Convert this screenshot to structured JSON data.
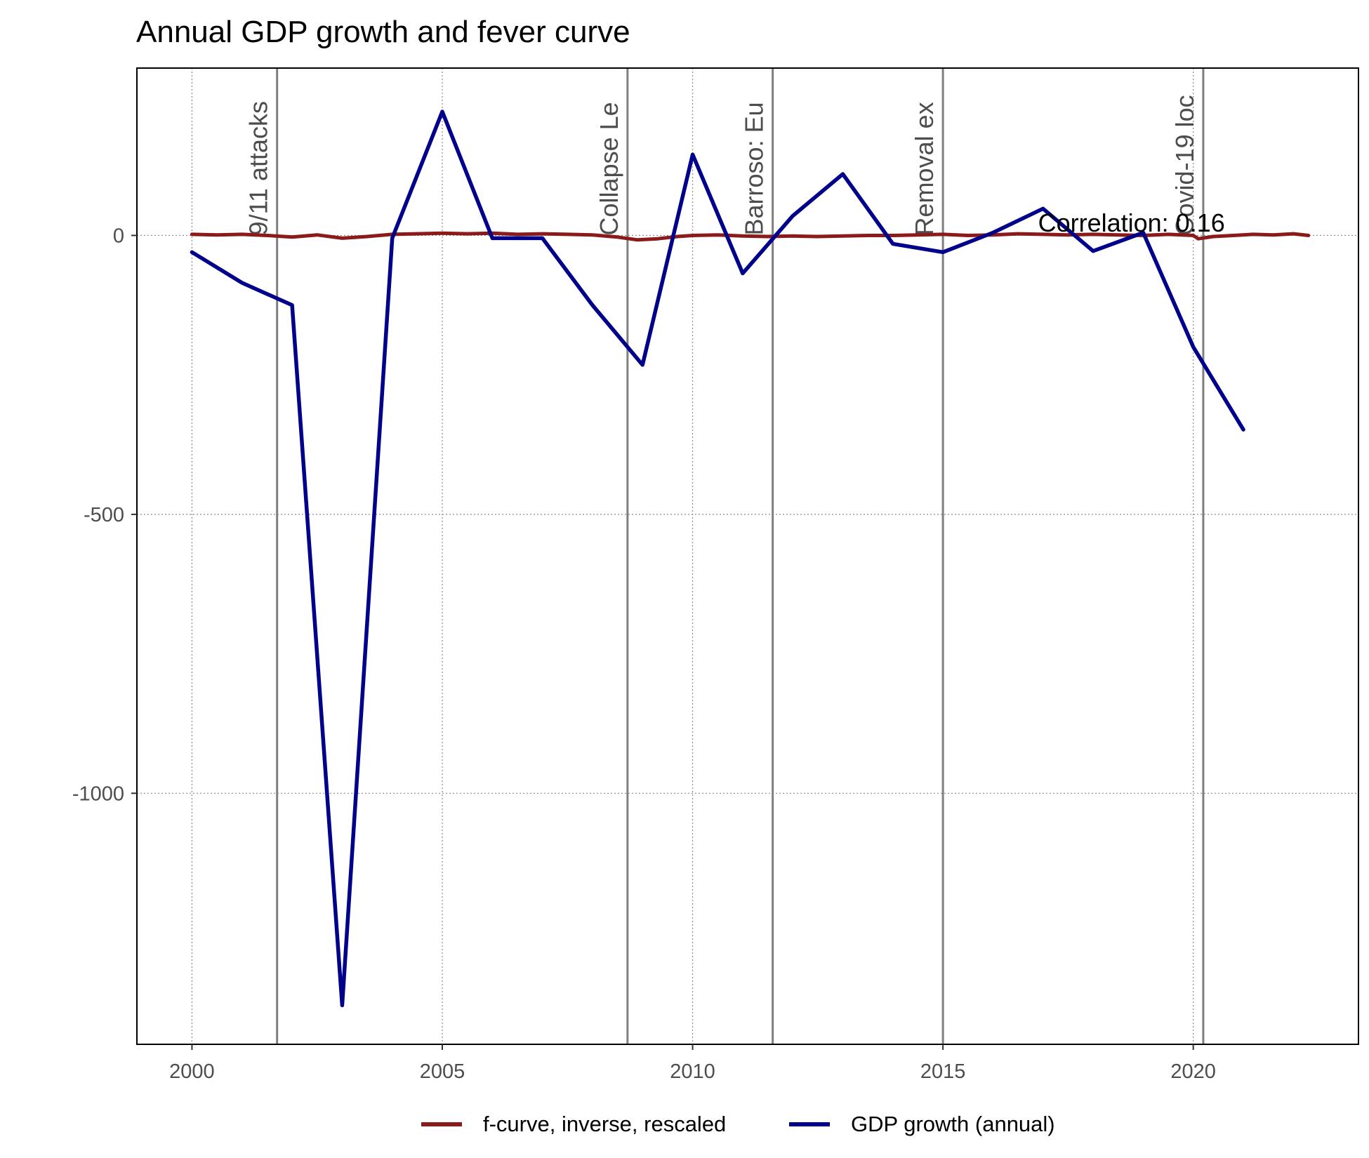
{
  "chart_data": {
    "type": "line",
    "title": "Annual GDP growth and fever curve",
    "xlabel": "",
    "ylabel": "",
    "xlim": [
      1998.9,
      2023.3
    ],
    "ylim": [
      -1450,
      300
    ],
    "x_ticks": [
      2000,
      2005,
      2010,
      2015,
      2020
    ],
    "y_ticks": [
      0,
      -500,
      -1000
    ],
    "y_tick_labels": [
      "0",
      "-500",
      "-1000"
    ],
    "grid": "dotted",
    "legend_position": "bottom",
    "annotation": "Correlation: 0.16",
    "annotation_at": {
      "x": 2016.9,
      "y": 22
    },
    "events": [
      {
        "x": 2001.7,
        "label": "9/11 attacks"
      },
      {
        "x": 2008.7,
        "label": "Collapse Le"
      },
      {
        "x": 2011.6,
        "label": "Barroso: Eu"
      },
      {
        "x": 2015.0,
        "label": "Removal ex"
      },
      {
        "x": 2020.2,
        "label": "Covid-19 loc"
      }
    ],
    "series": [
      {
        "name": "f-curve, inverse, rescaled",
        "color": "#8b1a1a",
        "x": [
          2000.0,
          2000.5,
          2001.0,
          2001.5,
          2002.0,
          2002.5,
          2003.0,
          2003.5,
          2004.0,
          2004.5,
          2005.0,
          2005.5,
          2006.0,
          2006.5,
          2007.0,
          2007.5,
          2008.0,
          2008.5,
          2008.9,
          2009.3,
          2009.7,
          2010.0,
          2010.5,
          2011.0,
          2011.5,
          2012.0,
          2012.5,
          2013.0,
          2013.5,
          2014.0,
          2014.5,
          2015.0,
          2015.5,
          2016.0,
          2016.5,
          2017.0,
          2017.5,
          2018.0,
          2018.5,
          2019.0,
          2019.5,
          2020.0,
          2020.1,
          2020.4,
          2020.8,
          2021.2,
          2021.6,
          2022.0,
          2022.3
        ],
        "values": [
          2,
          1,
          2,
          0,
          -3,
          1,
          -5,
          -2,
          2,
          3,
          4,
          3,
          4,
          2,
          3,
          2,
          1,
          -3,
          -8,
          -6,
          -2,
          0,
          1,
          -1,
          -2,
          -1,
          -2,
          -1,
          0,
          0,
          1,
          2,
          0,
          1,
          3,
          2,
          1,
          2,
          1,
          0,
          2,
          0,
          -6,
          -2,
          0,
          2,
          1,
          3,
          0
        ]
      },
      {
        "name": "GDP growth (annual)",
        "color": "#00008b",
        "x": [
          2000,
          2001,
          2002,
          2003,
          2004,
          2005,
          2006,
          2007,
          2008,
          2009,
          2010,
          2011,
          2012,
          2013,
          2014,
          2015,
          2016,
          2017,
          2018,
          2019,
          2020,
          2021
        ],
        "values": [
          -30,
          -85,
          -125,
          -1380,
          -5,
          222,
          -5,
          -5,
          -125,
          -232,
          145,
          -68,
          35,
          110,
          -15,
          -30,
          5,
          48,
          -28,
          5,
          -200,
          -348
        ]
      }
    ]
  }
}
